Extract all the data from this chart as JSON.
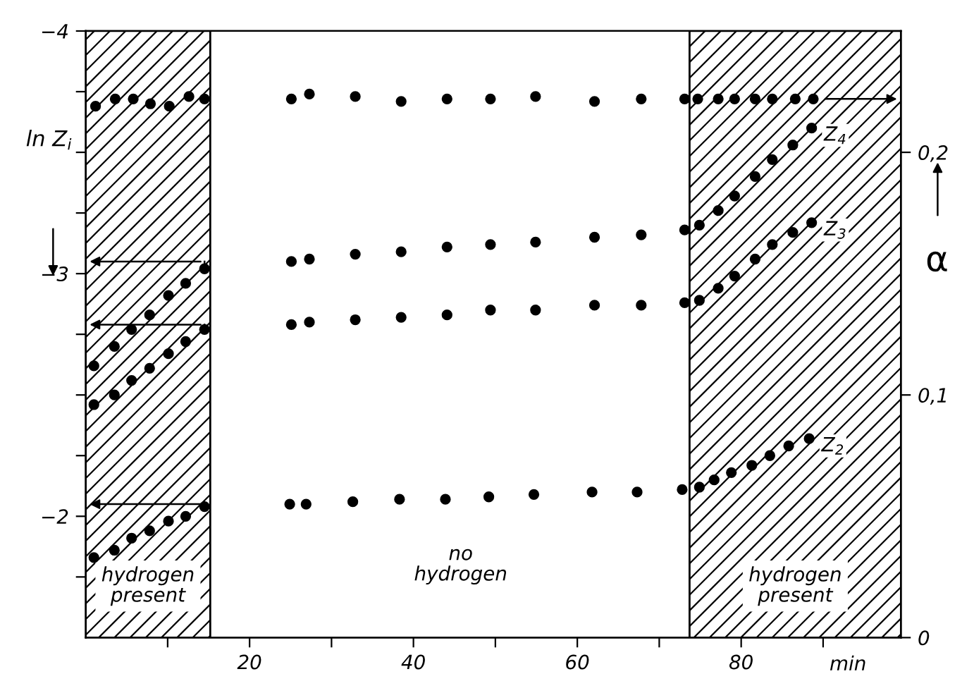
{
  "chart_data": {
    "type": "scatter",
    "xlabel": "min",
    "ylabel": "ln Z$_{i}$",
    "y2label": "α",
    "xlim": [
      0,
      99.5
    ],
    "xticks": [
      {
        "value": 10,
        "label": null
      },
      20,
      {
        "value": 30,
        "label": null
      },
      40,
      {
        "value": 50,
        "label": null
      },
      60,
      {
        "value": 70,
        "label": null
      },
      80,
      {
        "value": 90,
        "label": null
      }
    ],
    "ylim": [
      -1.5,
      -4
    ],
    "yticks": [
      -4,
      {
        "value": -3.75,
        "label": null
      },
      {
        "value": -3.5,
        "label": null
      },
      {
        "value": -3.25,
        "label": null
      },
      -3,
      {
        "value": -2.75,
        "label": null
      },
      {
        "value": -2.5,
        "label": null
      },
      {
        "value": -2.25,
        "label": null
      },
      -2,
      {
        "value": -1.75,
        "label": null
      }
    ],
    "y2lim": [
      0,
      0.25
    ],
    "y2ticks": [
      0,
      {
        "value": 0.1,
        "label": "0,1"
      },
      {
        "value": 0.2,
        "label": "0,2"
      }
    ],
    "marker": "circle",
    "grid": false,
    "legend": false,
    "bands": [
      {
        "axis": "x",
        "from": 0,
        "to": 15.2,
        "label": "hydrogen present",
        "color": "#000000"
      },
      {
        "axis": "x",
        "from": 73.7,
        "to": 99.5,
        "label": "hydrogen present",
        "color": "#000000"
      }
    ],
    "annotations": [
      "no hydrogen"
    ],
    "series": [
      {
        "color": "#000000",
        "x": [
          1.2,
          3.6,
          5.8,
          7.9,
          10.2,
          12.6,
          14.5,
          25.1,
          27.3,
          32.9,
          38.5,
          44.1,
          49.4,
          54.9,
          62.1,
          67.8,
          73.1,
          74.7,
          77.2,
          79.2,
          81.7,
          83.8,
          86.6,
          88.8
        ],
        "values": [
          -3.69,
          -3.72,
          -3.72,
          -3.7,
          -3.69,
          -3.73,
          -3.72,
          -3.72,
          -3.74,
          -3.73,
          -3.71,
          -3.72,
          -3.72,
          -3.73,
          -3.71,
          -3.72,
          -3.72,
          -3.72,
          -3.72,
          -3.72,
          -3.72,
          -3.72,
          -3.72,
          -3.72
        ]
      },
      {
        "name": "Z$_{4}$",
        "color": "#000000",
        "x": [
          1.0,
          3.5,
          5.6,
          7.8,
          10.1,
          12.2,
          14.5,
          25.1,
          27.3,
          32.9,
          38.5,
          44.1,
          49.4,
          54.9,
          62.1,
          67.8,
          73.1,
          74.9,
          77.2,
          79.2,
          81.7,
          83.8,
          86.3,
          88.6
        ],
        "values": [
          -2.62,
          -2.7,
          -2.77,
          -2.83,
          -2.91,
          -2.96,
          -3.02,
          -3.05,
          -3.06,
          -3.08,
          -3.09,
          -3.11,
          -3.12,
          -3.13,
          -3.15,
          -3.16,
          -3.18,
          -3.2,
          -3.26,
          -3.32,
          -3.4,
          -3.47,
          -3.53,
          -3.6
        ]
      },
      {
        "name": "Z$_{3}$",
        "color": "#000000",
        "x": [
          1.0,
          3.5,
          5.6,
          7.8,
          10.1,
          12.2,
          14.5,
          25.1,
          27.3,
          32.9,
          38.5,
          44.1,
          49.4,
          54.9,
          62.1,
          67.8,
          73.1,
          74.9,
          77.2,
          79.2,
          81.7,
          83.8,
          86.3,
          88.6
        ],
        "values": [
          -2.46,
          -2.5,
          -2.56,
          -2.61,
          -2.67,
          -2.72,
          -2.77,
          -2.79,
          -2.8,
          -2.81,
          -2.82,
          -2.83,
          -2.85,
          -2.85,
          -2.87,
          -2.87,
          -2.88,
          -2.89,
          -2.94,
          -2.99,
          -3.06,
          -3.12,
          -3.17,
          -3.21
        ]
      },
      {
        "name": "Z$_{2}$",
        "color": "#000000",
        "x": [
          1.0,
          3.5,
          5.6,
          7.8,
          10.1,
          12.2,
          14.5,
          24.9,
          26.9,
          32.6,
          38.3,
          43.9,
          49.2,
          54.7,
          61.8,
          67.3,
          72.8,
          74.9,
          76.7,
          78.8,
          81.3,
          83.5,
          85.8,
          88.3
        ],
        "values": [
          -1.83,
          -1.86,
          -1.91,
          -1.94,
          -1.98,
          -2.0,
          -2.04,
          -2.05,
          -2.05,
          -2.06,
          -2.07,
          -2.07,
          -2.08,
          -2.09,
          -2.1,
          -2.1,
          -2.11,
          -2.12,
          -2.15,
          -2.18,
          -2.21,
          -2.25,
          -2.29,
          -2.32
        ]
      }
    ]
  }
}
